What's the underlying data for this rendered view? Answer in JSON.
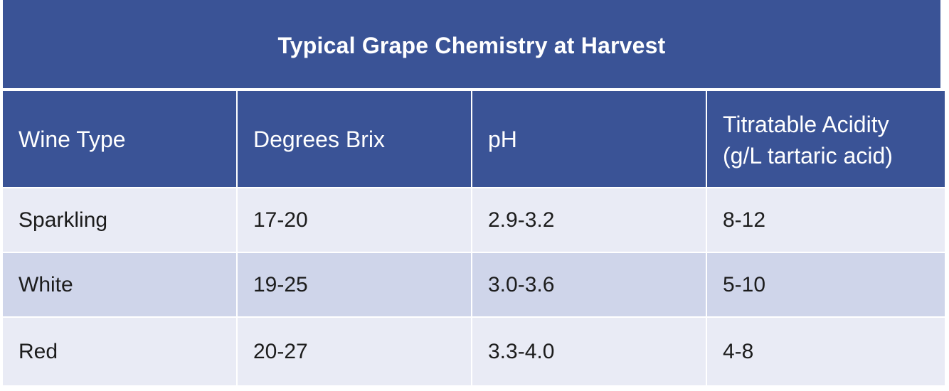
{
  "table": {
    "title": "Typical Grape Chemistry at Harvest",
    "headers": [
      "Wine Type",
      "Degrees Brix",
      "pH",
      "Titratable Acidity\n(g/L tartaric acid)"
    ],
    "rows": [
      [
        "Sparkling",
        "17-20",
        "2.9-3.2",
        "8-12"
      ],
      [
        "White",
        "19-25",
        "3.0-3.6",
        "5-10"
      ],
      [
        "Red",
        "20-27",
        "3.3-4.0",
        "4-8"
      ]
    ]
  },
  "colors": {
    "header_blue": "#3a5396",
    "row_light": "#e9ebf5",
    "row_dark": "#cfd5ea"
  }
}
